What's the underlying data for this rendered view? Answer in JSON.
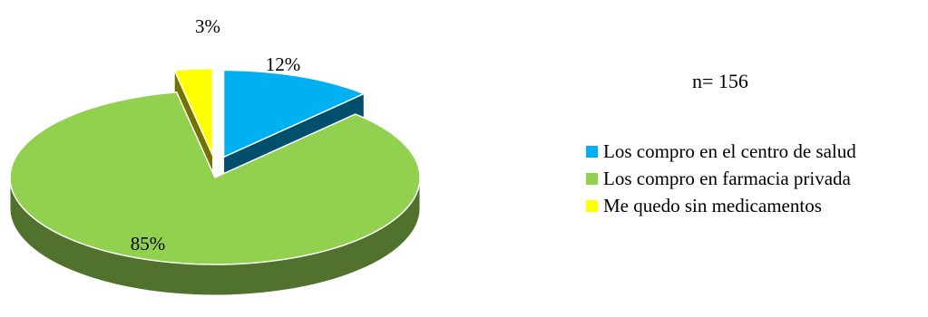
{
  "sample_size_label": "n= 156",
  "chart_data": {
    "type": "pie",
    "title": "",
    "labels": [
      "Los compro en el centro de salud",
      "Los compro en farmacia privada",
      "Me quedo sin medicamentos"
    ],
    "values": [
      12,
      85,
      3
    ],
    "data_labels": [
      "12%",
      "85%",
      "3%"
    ],
    "colors": [
      "#00B0F0",
      "#92D050",
      "#FFFF00"
    ],
    "exploded": true,
    "three_d": true,
    "legend_position": "right"
  }
}
